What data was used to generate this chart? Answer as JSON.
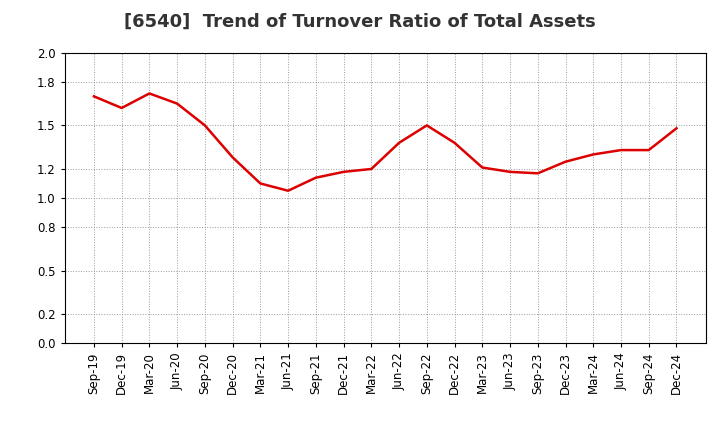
{
  "title": "[6540]  Trend of Turnover Ratio of Total Assets",
  "x_labels": [
    "Sep-19",
    "Dec-19",
    "Mar-20",
    "Jun-20",
    "Sep-20",
    "Dec-20",
    "Mar-21",
    "Jun-21",
    "Sep-21",
    "Dec-21",
    "Mar-22",
    "Jun-22",
    "Sep-22",
    "Dec-22",
    "Mar-23",
    "Jun-23",
    "Sep-23",
    "Dec-23",
    "Mar-24",
    "Jun-24",
    "Sep-24",
    "Dec-24"
  ],
  "y_values": [
    1.7,
    1.62,
    1.72,
    1.65,
    1.5,
    1.28,
    1.1,
    1.05,
    1.14,
    1.18,
    1.2,
    1.38,
    1.5,
    1.38,
    1.21,
    1.18,
    1.17,
    1.25,
    1.3,
    1.33,
    1.33,
    1.48
  ],
  "ylim": [
    0.0,
    2.0
  ],
  "yticks": [
    0.0,
    0.2,
    0.5,
    0.8,
    1.0,
    1.2,
    1.5,
    1.8,
    2.0
  ],
  "line_color": "#dd0000",
  "line_width": 1.8,
  "background_color": "#ffffff",
  "grid_color": "#999999",
  "title_fontsize": 13,
  "tick_fontsize": 8.5,
  "title_color": "#333333"
}
